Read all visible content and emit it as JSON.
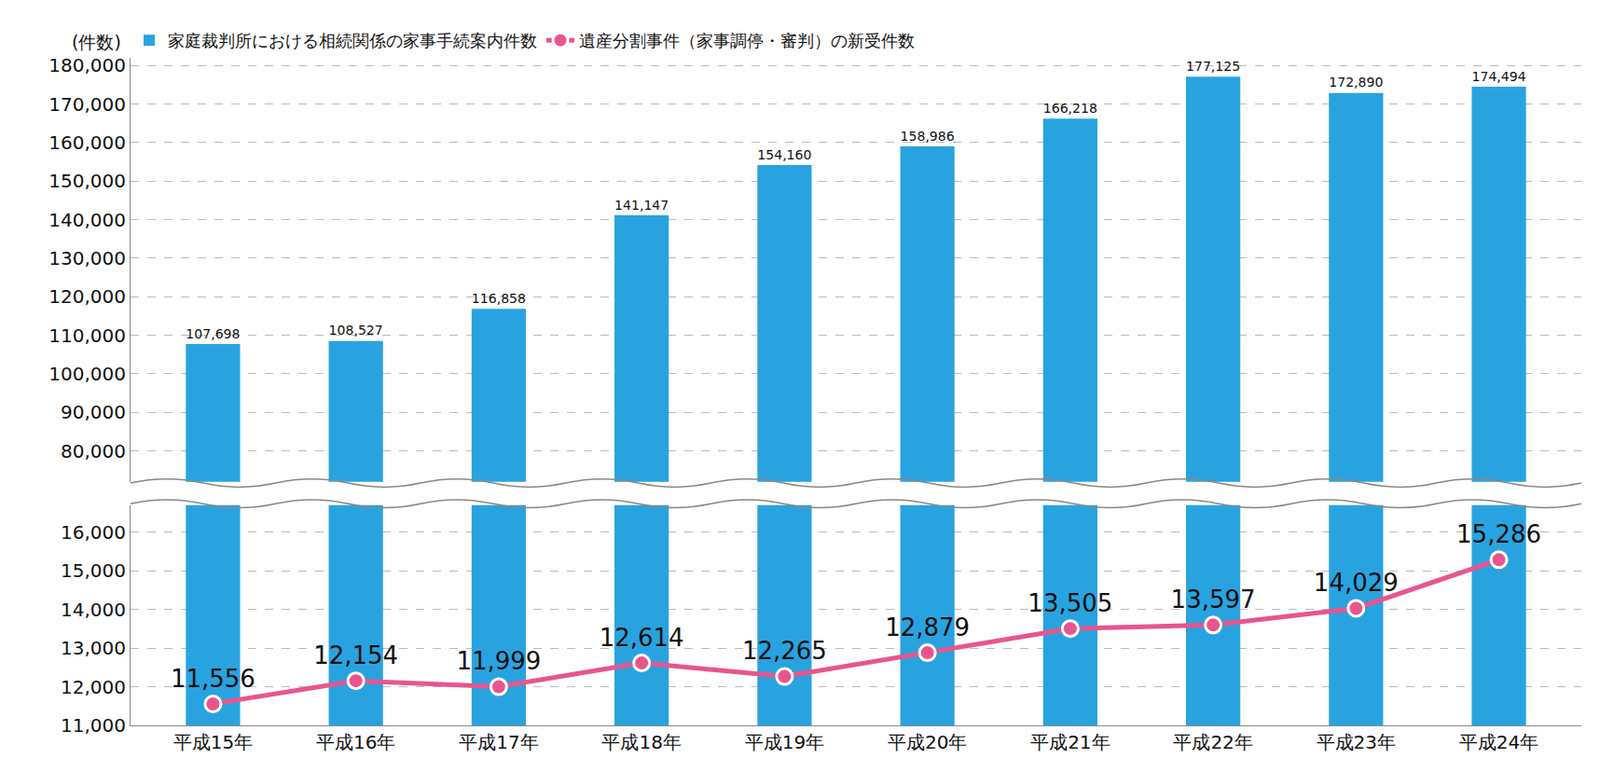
{
  "chart_data": {
    "type": "bar",
    "ylabel": "(件数)",
    "legend": "top left",
    "grid": true,
    "data_labels": true,
    "categories": [
      "平成15年",
      "平成16年",
      "平成17年",
      "平成18年",
      "平成19年",
      "平成20年",
      "平成21年",
      "平成22年",
      "平成23年",
      "平成24年"
    ],
    "series": [
      {
        "name": "家庭裁判所における相続関係の家事手続案内件数",
        "type": "bar",
        "color": "#29a3e0",
        "axis": "y2",
        "values": [
          107698,
          108527,
          116858,
          141147,
          154160,
          158986,
          166218,
          177125,
          172890,
          174494
        ],
        "value_labels": [
          "107,698",
          "108,527",
          "116,858",
          "141,147",
          "154,160",
          "158,986",
          "166,218",
          "177,125",
          "172,890",
          "174,494"
        ]
      },
      {
        "name": "遺産分割事件（家事調停・審判）の新受件数",
        "type": "line",
        "color": "#e8558e",
        "marker": "circle",
        "axis": "y",
        "values": [
          11556,
          12154,
          11999,
          12614,
          12265,
          12879,
          13505,
          13597,
          14029,
          15286
        ],
        "value_labels": [
          "11,556",
          "12,154",
          "11,999",
          "12,614",
          "12,265",
          "12,879",
          "13,505",
          "13,597",
          "14,029",
          "15,286"
        ]
      }
    ],
    "ylim": [
      11000,
      16700
    ],
    "yticks": [
      {
        "value": 11000,
        "label": "11,000"
      },
      {
        "value": 12000,
        "label": "12,000"
      },
      {
        "value": 13000,
        "label": "13,000"
      },
      {
        "value": 14000,
        "label": "14,000"
      },
      {
        "value": 15000,
        "label": "15,000"
      },
      {
        "value": 16000,
        "label": "16,000"
      }
    ],
    "y2lim": [
      72000,
      182000
    ],
    "y2ticks": [
      {
        "value": 80000,
        "label": "80,000"
      },
      {
        "value": 90000,
        "label": "90,000"
      },
      {
        "value": 100000,
        "label": "100,000"
      },
      {
        "value": 110000,
        "label": "110,000"
      },
      {
        "value": 120000,
        "label": "120,000"
      },
      {
        "value": 130000,
        "label": "130,000"
      },
      {
        "value": 140000,
        "label": "140,000"
      },
      {
        "value": 150000,
        "label": "150,000"
      },
      {
        "value": 160000,
        "label": "160,000"
      },
      {
        "value": 170000,
        "label": "170,000"
      },
      {
        "value": 180000,
        "label": "180,000"
      }
    ]
  }
}
